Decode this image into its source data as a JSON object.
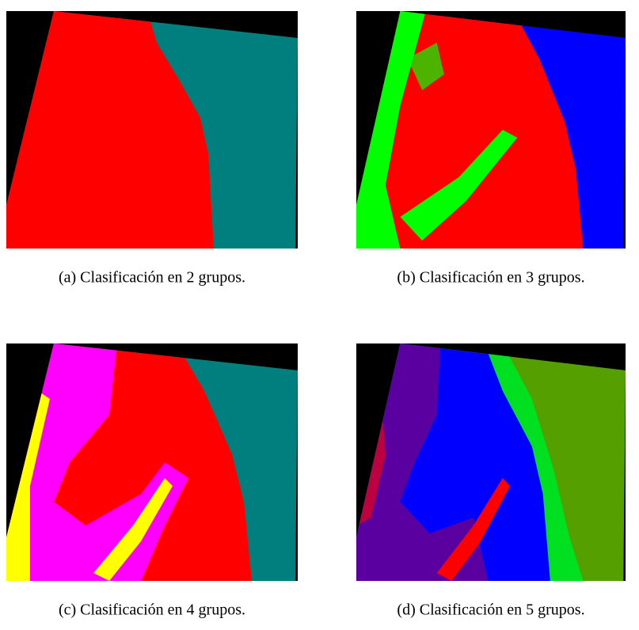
{
  "captions": [
    "(a) Clasificación en 2 grupos.",
    "(b) Clasificación en 3 grupos.",
    "(c) Clasificación en 4 grupos.",
    "(d) Clasificación en 5 grupos."
  ]
}
